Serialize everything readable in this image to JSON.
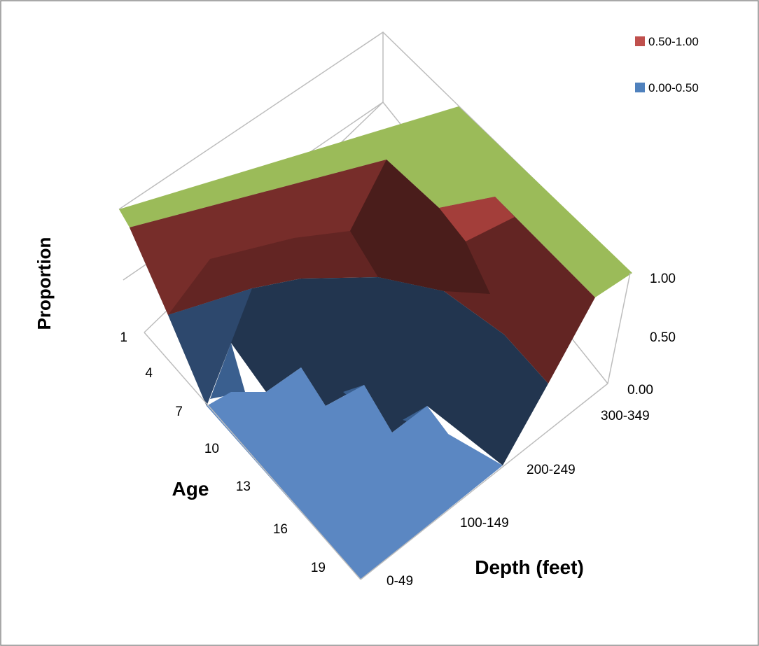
{
  "chart_data": {
    "type": "surface",
    "zlabel": "Proportion",
    "xlabel": "Age",
    "ylabel": "Depth (feet)",
    "z_ticks": [
      "0.00",
      "0.50",
      "1.00"
    ],
    "zlim": [
      0,
      1
    ],
    "age_ticks": [
      "1",
      "4",
      "7",
      "10",
      "13",
      "16",
      "19"
    ],
    "depth_ticks": [
      "0-49",
      "100-149",
      "200-249",
      "300-349"
    ],
    "legend": [
      {
        "label": "0.50-1.00",
        "color": "#c0504d"
      },
      {
        "label": "0.00-0.50",
        "color": "#4f81bd"
      }
    ],
    "top_color": "#9bbb59",
    "legend_placement": "top-right",
    "grid": false
  }
}
